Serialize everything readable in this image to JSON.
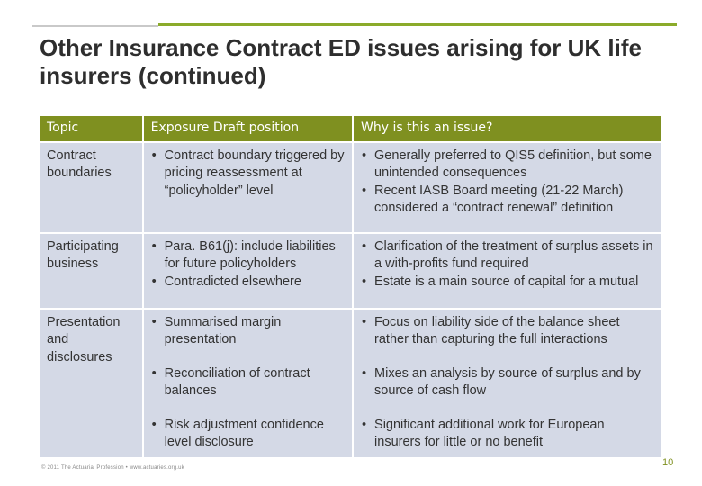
{
  "slide": {
    "title": "Other Insurance Contract ED issues arising for UK life insurers (continued)",
    "footer": "© 2011 The Actuarial Profession • www.actuaries.org.uk",
    "page_number": "10",
    "accent_color": "#7f9020",
    "row_color": "#d4d9e6"
  },
  "table": {
    "headers": [
      "Topic",
      "Exposure Draft position",
      "Why is this an issue?"
    ],
    "rows": [
      {
        "topic": "Contract boundaries",
        "ed": [
          "Contract boundary triggered by pricing reassessment at “policyholder” level"
        ],
        "why": [
          "Generally preferred to QIS5 definition, but some unintended consequences",
          "Recent IASB Board meeting (21-22 March) considered a “contract renewal” definition"
        ]
      },
      {
        "topic": "Participating business",
        "ed": [
          "Para. B61(j): include liabilities for future policyholders",
          "Contradicted elsewhere"
        ],
        "why": [
          "Clarification of the treatment of surplus assets in a with-profits fund required",
          "Estate is a main source of capital for a mutual"
        ]
      },
      {
        "topic": "Presentation and disclosures",
        "ed": [
          "Summarised margin presentation",
          "Reconciliation of contract balances",
          "Risk adjustment confidence level disclosure"
        ],
        "why": [
          "Focus on liability side of the balance sheet rather than capturing the full interactions",
          "Mixes an analysis by source of surplus and by source of cash flow",
          "Significant additional work for European insurers for little or no benefit"
        ]
      }
    ]
  }
}
